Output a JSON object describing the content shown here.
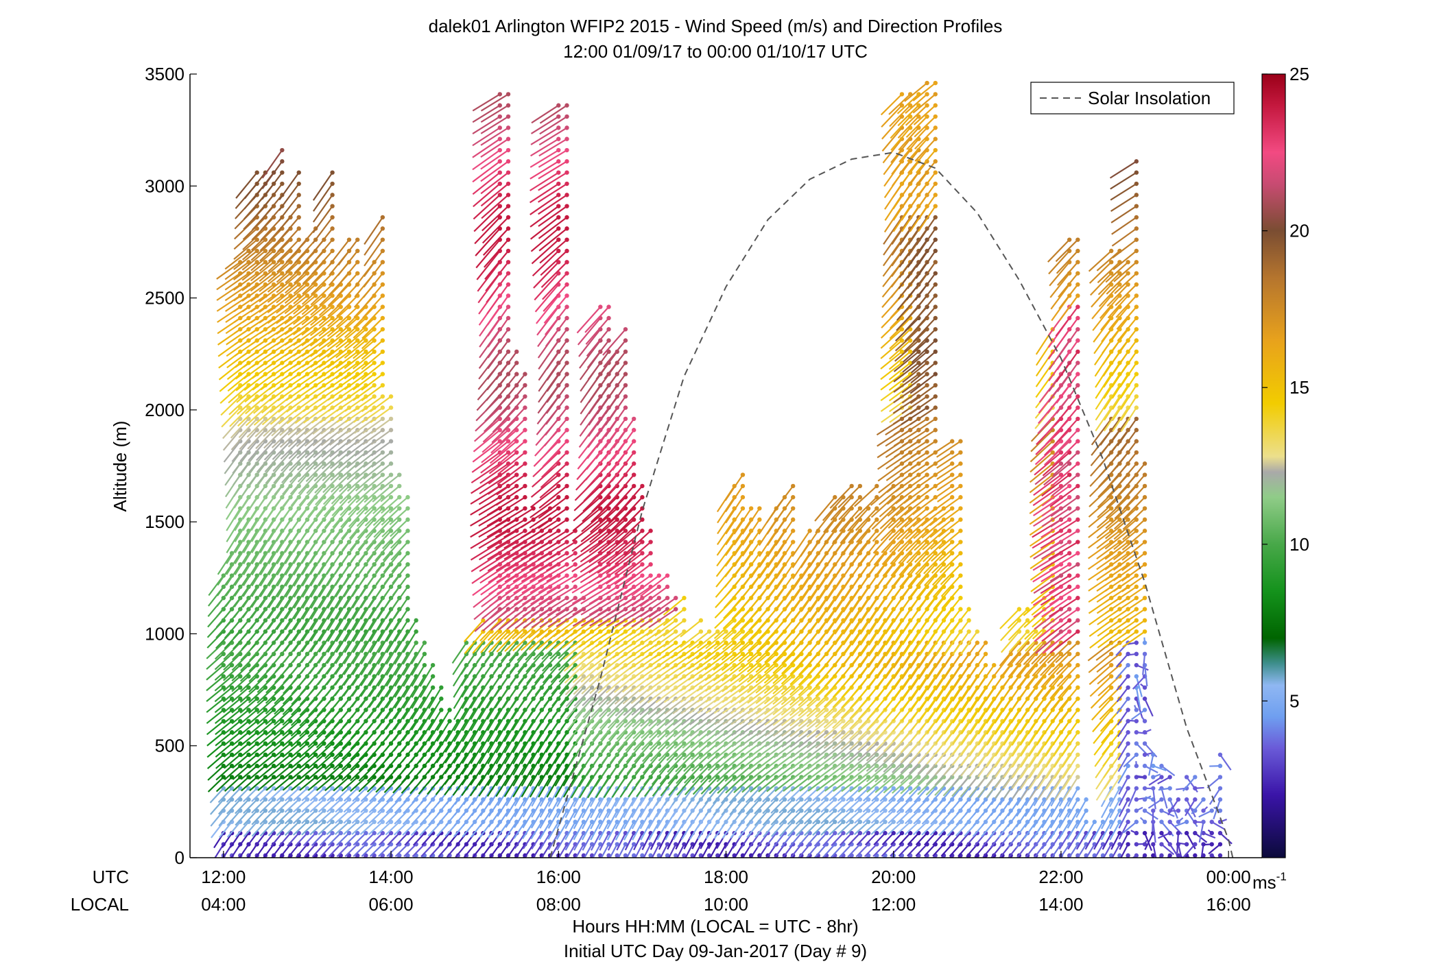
{
  "chart_data": {
    "type": "scatter",
    "plot_style": "wind-barb profile (wind speed colour-coded, direction as barb stick)",
    "title": "dalek01 Arlington WFIP2 2015 - Wind Speed (m/s) and Direction Profiles",
    "subtitle": "12:00 01/09/17 to 00:00 01/10/17  UTC",
    "ylabel": "Altitude (m)",
    "xlabel": "Hours HH:MM  (LOCAL = UTC - 8hr)",
    "xlabel2": "Initial UTC Day 09-Jan-2017 (Day # 9)",
    "x_row_labels": {
      "utc": "UTC",
      "local": "LOCAL"
    },
    "x_unit": "hours UTC",
    "xlim": [
      11.6,
      24.4
    ],
    "ylim": [
      0,
      3500
    ],
    "y_ticks": [
      0,
      500,
      1000,
      1500,
      2000,
      2500,
      3000,
      3500
    ],
    "x_ticks_utc": [
      {
        "x": 12,
        "label": "12:00"
      },
      {
        "x": 14,
        "label": "14:00"
      },
      {
        "x": 16,
        "label": "16:00"
      },
      {
        "x": 18,
        "label": "18:00"
      },
      {
        "x": 20,
        "label": "20:00"
      },
      {
        "x": 22,
        "label": "22:00"
      },
      {
        "x": 24,
        "label": "00:00"
      }
    ],
    "x_ticks_local": [
      {
        "x": 12,
        "label": "04:00"
      },
      {
        "x": 14,
        "label": "06:00"
      },
      {
        "x": 16,
        "label": "08:00"
      },
      {
        "x": 18,
        "label": "10:00"
      },
      {
        "x": 20,
        "label": "12:00"
      },
      {
        "x": 22,
        "label": "14:00"
      },
      {
        "x": 24,
        "label": "16:00"
      }
    ],
    "grid": false,
    "legend": {
      "placement": "top-right",
      "entries": [
        {
          "label": "Solar Insolation",
          "style": "dashed",
          "color": "#555555"
        }
      ]
    },
    "colorbar": {
      "unit_label": "ms",
      "unit_exponent": "-1",
      "range": [
        0,
        25
      ],
      "ticks": [
        5,
        10,
        15,
        20,
        25
      ],
      "colormap": [
        {
          "v": 0.0,
          "c": "#0b0a3a"
        },
        {
          "v": 2.0,
          "c": "#3a14a8"
        },
        {
          "v": 3.5,
          "c": "#6a5bd8"
        },
        {
          "v": 4.5,
          "c": "#6f9ff0"
        },
        {
          "v": 5.5,
          "c": "#8fb7f2"
        },
        {
          "v": 6.2,
          "c": "#3e8e8c"
        },
        {
          "v": 7.0,
          "c": "#006400"
        },
        {
          "v": 8.5,
          "c": "#14921c"
        },
        {
          "v": 10.0,
          "c": "#48a849"
        },
        {
          "v": 11.5,
          "c": "#90cc88"
        },
        {
          "v": 12.3,
          "c": "#a9a9a9"
        },
        {
          "v": 12.8,
          "c": "#ecdf8c"
        },
        {
          "v": 14.5,
          "c": "#f2cc00"
        },
        {
          "v": 16.5,
          "c": "#e8a21c"
        },
        {
          "v": 18.5,
          "c": "#b5752e"
        },
        {
          "v": 20.0,
          "c": "#7a4d32"
        },
        {
          "v": 21.5,
          "c": "#c84b72"
        },
        {
          "v": 22.5,
          "c": "#f24a82"
        },
        {
          "v": 24.0,
          "c": "#c4183e"
        },
        {
          "v": 25.0,
          "c": "#9a0018"
        }
      ]
    },
    "solar_insolation_curve": {
      "style": "dashed",
      "points": [
        {
          "x": 15.9,
          "y": 0
        },
        {
          "x": 16.5,
          "y": 800
        },
        {
          "x": 17.0,
          "y": 1550
        },
        {
          "x": 17.5,
          "y": 2150
        },
        {
          "x": 18.0,
          "y": 2550
        },
        {
          "x": 18.5,
          "y": 2850
        },
        {
          "x": 19.0,
          "y": 3030
        },
        {
          "x": 19.5,
          "y": 3120
        },
        {
          "x": 20.0,
          "y": 3150
        },
        {
          "x": 20.5,
          "y": 3080
        },
        {
          "x": 21.0,
          "y": 2880
        },
        {
          "x": 21.5,
          "y": 2580
        },
        {
          "x": 22.0,
          "y": 2230
        },
        {
          "x": 22.5,
          "y": 1780
        },
        {
          "x": 23.0,
          "y": 1230
        },
        {
          "x": 23.5,
          "y": 580
        },
        {
          "x": 24.0,
          "y": 80
        },
        {
          "x": 24.05,
          "y": 0
        }
      ]
    },
    "profile_times": [
      12.0,
      12.1,
      12.2,
      12.3,
      12.4,
      12.5,
      12.6,
      12.7,
      12.8,
      12.9,
      13.0,
      13.1,
      13.2,
      13.3,
      13.4,
      13.5,
      13.6,
      13.7,
      13.8,
      13.9,
      14.0,
      14.1,
      14.2,
      14.3,
      14.4,
      14.5,
      14.6,
      14.7,
      14.8,
      14.9,
      15.0,
      15.1,
      15.2,
      15.3,
      15.4,
      15.5,
      15.6,
      15.7,
      15.8,
      15.9,
      16.0,
      16.1,
      16.2,
      16.3,
      16.4,
      16.5,
      16.6,
      16.7,
      16.8,
      16.9,
      17.0,
      17.1,
      17.2,
      17.3,
      17.4,
      17.5,
      17.6,
      17.7,
      17.8,
      17.9,
      18.0,
      18.1,
      18.2,
      18.3,
      18.4,
      18.5,
      18.6,
      18.7,
      18.8,
      18.9,
      19.0,
      19.1,
      19.2,
      19.3,
      19.4,
      19.5,
      19.6,
      19.7,
      19.8,
      19.9,
      20.0,
      20.1,
      20.2,
      20.3,
      20.4,
      20.5,
      20.6,
      20.7,
      20.8,
      20.9,
      21.0,
      21.1,
      21.2,
      21.3,
      21.4,
      21.5,
      21.6,
      21.7,
      21.8,
      21.9,
      22.0,
      22.1,
      22.2,
      22.3,
      22.4,
      22.5,
      22.6,
      22.7,
      22.8,
      22.9,
      23.0,
      23.1,
      23.2,
      23.3,
      23.4,
      23.5,
      23.6,
      23.7,
      23.8,
      23.9,
      24.0
    ],
    "profile_tops_m": [
      1300,
      1400,
      2700,
      2750,
      3100,
      3100,
      3100,
      3200,
      2900,
      3100,
      2800,
      2850,
      2800,
      3100,
      2600,
      2800,
      2800,
      2500,
      2700,
      2900,
      2100,
      1750,
      1650,
      1100,
      1000,
      900,
      800,
      700,
      650,
      1000,
      1000,
      1100,
      1050,
      3450,
      3450,
      2300,
      2200,
      1600,
      1500,
      1600,
      3400,
      3400,
      1500,
      1200,
      1100,
      2500,
      2500,
      2300,
      2400,
      2000,
      1700,
      1500,
      1300,
      1300,
      1200,
      1200,
      1000,
      1100,
      1050,
      1050,
      1050,
      1700,
      1750,
      1600,
      1600,
      1400,
      1600,
      1650,
      1700,
      1300,
      1500,
      1500,
      1500,
      1650,
      1650,
      1700,
      1700,
      1600,
      1700,
      1400,
      1700,
      3450,
      3450,
      3450,
      3500,
      3500,
      1600,
      1900,
      1900,
      1150,
      1050,
      1000,
      900,
      850,
      950,
      1150,
      1150,
      1050,
      1200,
      2400,
      2200,
      2800,
      2800,
      300,
      200,
      200,
      2750,
      2750,
      2700,
      3150,
      1800,
      500,
      450,
      400,
      300,
      400,
      400,
      300,
      250,
      500,
      0
    ]
  }
}
